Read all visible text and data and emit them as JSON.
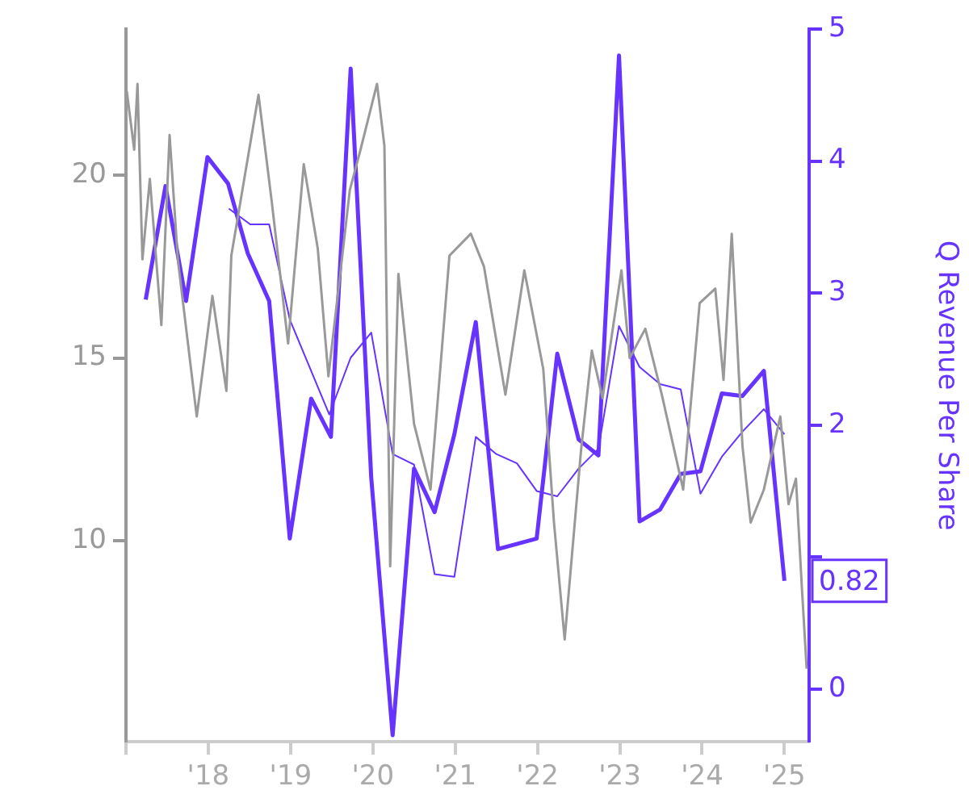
{
  "chart_data": {
    "type": "line",
    "y2label": "Q Revenue Per Share",
    "xlim": [
      2017,
      2025.3
    ],
    "xticks": [
      {
        "value": 2017,
        "label": null
      },
      {
        "value": 2018,
        "label": "'18"
      },
      {
        "value": 2019,
        "label": "'19"
      },
      {
        "value": 2020,
        "label": "'20"
      },
      {
        "value": 2021,
        "label": "'21"
      },
      {
        "value": 2022,
        "label": "'22"
      },
      {
        "value": 2023,
        "label": "'23"
      },
      {
        "value": 2024,
        "label": "'24"
      },
      {
        "value": 2025,
        "label": "'25"
      }
    ],
    "ylim": [
      4.5,
      24
    ],
    "yticks": [
      10,
      15,
      20
    ],
    "y2lim": [
      -0.4,
      5
    ],
    "y2ticks": [
      0,
      {
        "value": 1,
        "label": null
      },
      2,
      3,
      4,
      5
    ],
    "legend": false,
    "grid": false,
    "marker": "none",
    "series": [
      {
        "color": "#999999",
        "axis": "y",
        "x": [
          2017.01,
          2017.1,
          2017.14,
          2017.2,
          2017.29,
          2017.43,
          2017.53,
          2017.63,
          2017.86,
          2018.05,
          2018.22,
          2018.28,
          2018.61,
          2018.77,
          2018.97,
          2019.16,
          2019.33,
          2019.46,
          2019.72,
          2019.85,
          2020.05,
          2020.14,
          2020.21,
          2020.31,
          2020.5,
          2020.7,
          2020.93,
          2021.19,
          2021.35,
          2021.61,
          2021.84,
          2022.07,
          2022.2,
          2022.33,
          2022.53,
          2022.66,
          2022.79,
          2023.02,
          2023.12,
          2023.31,
          2023.51,
          2023.77,
          2023.97,
          2024.16,
          2024.26,
          2024.36,
          2024.49,
          2024.59,
          2024.75,
          2024.95,
          2025.05,
          2025.14,
          2025.21,
          2025.27
        ],
        "values": [
          22.3,
          20.7,
          22.5,
          17.7,
          19.9,
          15.9,
          21.1,
          17.7,
          13.4,
          16.7,
          14.1,
          17.8,
          22.2,
          19.3,
          15.4,
          20.3,
          18,
          14.5,
          19.6,
          20.7,
          22.5,
          20.8,
          9.3,
          17.3,
          13.2,
          11.4,
          17.8,
          18.4,
          17.5,
          14,
          17.4,
          14.7,
          10.5,
          7.3,
          12.5,
          15.2,
          13.9,
          17.4,
          15,
          15.8,
          14,
          11.4,
          16.5,
          16.9,
          14.4,
          18.4,
          12.6,
          10.5,
          11.4,
          13.4,
          11,
          11.7,
          8.8,
          6.5
        ]
      },
      {
        "color": "#6633ff",
        "axis": "y2",
        "x": [
          2018.25,
          2018.51,
          2018.74,
          2018.99,
          2019.47,
          2019.73,
          2019.98,
          2020.24,
          2020.5,
          2020.75,
          2020.99,
          2021.25,
          2021.5,
          2021.75,
          2021.99,
          2022.24,
          2022.5,
          2022.74,
          2022.99,
          2023.24,
          2023.49,
          2023.74,
          2023.98,
          2024.24,
          2024.49,
          2024.75,
          2025.0
        ],
        "values": [
          3.64,
          3.52,
          3.52,
          2.8,
          2.08,
          2.51,
          2.7,
          1.78,
          1.7,
          0.87,
          0.85,
          1.91,
          1.78,
          1.71,
          1.5,
          1.46,
          1.67,
          1.82,
          2.75,
          2.44,
          2.31,
          2.27,
          1.48,
          1.76,
          1.95,
          2.12,
          1.93
        ]
      },
      {
        "color": "#6633ff",
        "axis": "y2",
        "x": [
          2017.24,
          2017.48,
          2017.73,
          2017.99,
          2018.24,
          2018.48,
          2018.74,
          2018.99,
          2019.25,
          2019.49,
          2019.73,
          2019.98,
          2020.24,
          2020.5,
          2020.75,
          2020.99,
          2021.25,
          2021.52,
          2021.99,
          2022.24,
          2022.5,
          2022.74,
          2022.99,
          2023.24,
          2023.49,
          2023.74,
          2023.98,
          2024.24,
          2024.49,
          2024.75,
          2025.0
        ],
        "values": [
          2.95,
          3.81,
          2.94,
          4.03,
          3.83,
          3.3,
          2.94,
          1.14,
          2.2,
          1.91,
          4.7,
          1.6,
          -0.35,
          1.67,
          1.34,
          1.93,
          2.78,
          1.06,
          1.14,
          2.54,
          1.89,
          1.77,
          4.8,
          1.27,
          1.36,
          1.63,
          1.65,
          2.24,
          2.22,
          2.41,
          0.82
        ],
        "value_labels": [
          null,
          null,
          null,
          null,
          null,
          null,
          null,
          null,
          null,
          null,
          null,
          null,
          null,
          null,
          null,
          null,
          null,
          null,
          null,
          null,
          null,
          null,
          null,
          null,
          null,
          null,
          null,
          null,
          null,
          null,
          "0.82"
        ]
      }
    ]
  }
}
